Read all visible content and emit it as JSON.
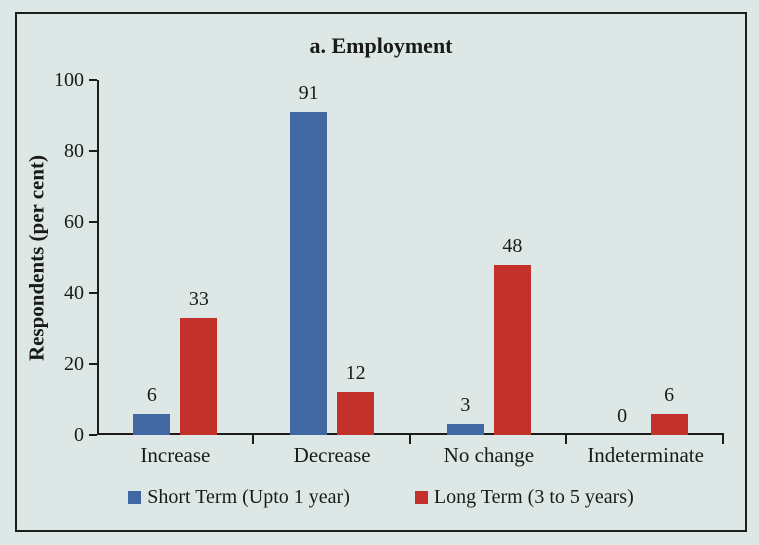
{
  "colors": {
    "background": "#dde8e6",
    "frame_border": "#1c1c1c",
    "axis": "#1c1c1c",
    "text": "#1a1a1a",
    "short_term_blue": "#4268a4",
    "long_term_red": "#c2322a"
  },
  "chart_data": {
    "type": "bar",
    "title": "a. Employment",
    "categories": [
      "Increase",
      "Decrease",
      "No change",
      "Indeterminate"
    ],
    "series": [
      {
        "name": "Short Term (Upto 1 year)",
        "color": "#4268a4",
        "values": [
          6,
          91,
          3,
          0
        ]
      },
      {
        "name": "Long Term (3 to 5 years)",
        "color": "#c2322a",
        "values": [
          33,
          12,
          48,
          6
        ]
      }
    ],
    "xlabel": "",
    "ylabel": "Respondents (per cent)",
    "ylim": [
      0,
      100
    ],
    "yticks": [
      0,
      20,
      40,
      60,
      80,
      100
    ],
    "grid": false,
    "legend_position": "bottom",
    "value_labels": true
  }
}
